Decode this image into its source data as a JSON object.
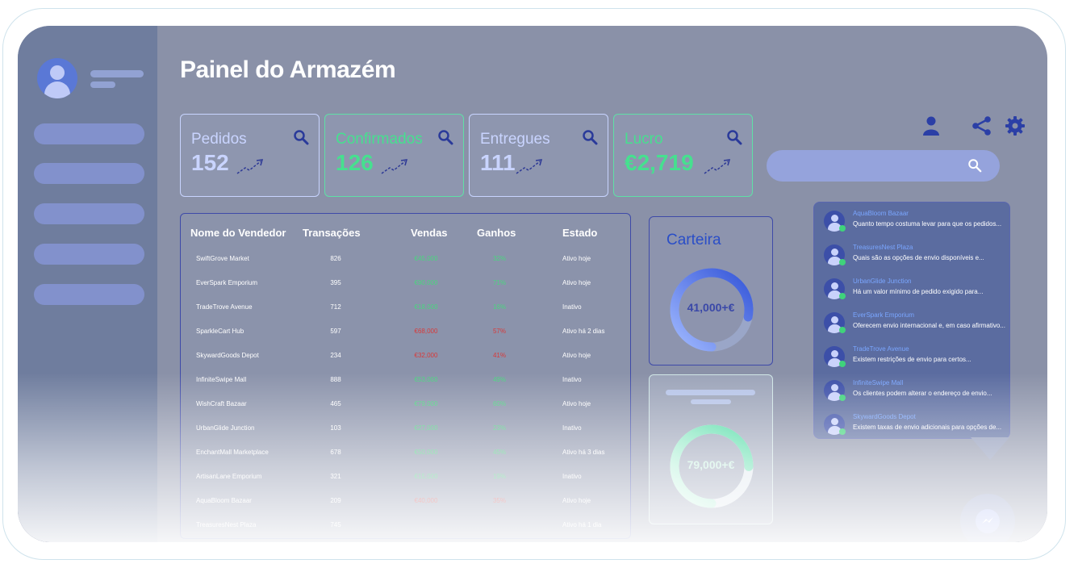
{
  "page": {
    "title": "Painel do Armazém"
  },
  "stats": [
    {
      "label": "Pedidos",
      "value": "152"
    },
    {
      "label": "Confirmados",
      "value": "126"
    },
    {
      "label": "Entregues",
      "value": "111"
    },
    {
      "label": "Lucro",
      "value": "€2,719"
    }
  ],
  "table": {
    "headers": [
      "Nome do Vendedor",
      "Transações",
      "Vendas",
      "Ganhos",
      "Estado"
    ],
    "rows": [
      {
        "name": "SwiftGrove Market",
        "transactions": "826",
        "sales": "€45,000",
        "gains": "32%",
        "status": "Ativo hoje",
        "trend": "pos"
      },
      {
        "name": "EverSpark Emporium",
        "transactions": "395",
        "sales": "€90,000",
        "gains": "71%",
        "status": "Ativo hoje",
        "trend": "pos"
      },
      {
        "name": "TradeTrove Avenue",
        "transactions": "712",
        "sales": "€18,000",
        "gains": "16%",
        "status": "Inativo",
        "trend": "pos"
      },
      {
        "name": "SparkleCart Hub",
        "transactions": "597",
        "sales": "€68,000",
        "gains": "57%",
        "status": "Ativo há 2 dias",
        "trend": "neg"
      },
      {
        "name": "SkywardGoods Depot",
        "transactions": "234",
        "sales": "€32,000",
        "gains": "41%",
        "status": "Ativo hoje",
        "trend": "neg"
      },
      {
        "name": "InfiniteSwipe Mall",
        "transactions": "888",
        "sales": "€53,000",
        "gains": "49%",
        "status": "Inativo",
        "trend": "pos"
      },
      {
        "name": "WishCraft Bazaar",
        "transactions": "465",
        "sales": "€79,000",
        "gains": "60%",
        "status": "Ativo hoje",
        "trend": "pos"
      },
      {
        "name": "UrbanGlide Junction",
        "transactions": "103",
        "sales": "€27,000",
        "gains": "23%",
        "status": "Inativo",
        "trend": "pos"
      },
      {
        "name": "EnchantMall Marketplace",
        "transactions": "678",
        "sales": "€50,000",
        "gains": "45%",
        "status": "Ativo há 3 dias",
        "trend": "pos"
      },
      {
        "name": "ArtisanLane Emporium",
        "transactions": "321",
        "sales": "€15,000",
        "gains": "19%",
        "status": "Inativo",
        "trend": "pos"
      },
      {
        "name": "AquaBloom Bazaar",
        "transactions": "209",
        "sales": "€40,000",
        "gains": "35%",
        "status": "Ativo hoje",
        "trend": "neg"
      },
      {
        "name": "TreasuresNest Plaza",
        "transactions": "745",
        "sales": "",
        "gains": "",
        "status": "Ativo há 1 dia",
        "trend": "pos"
      }
    ]
  },
  "wallet": {
    "title": "Carteira",
    "value": "41,000+€",
    "progress": 0.78
  },
  "wallet2": {
    "value": "79,000+€",
    "progress": 0.75
  },
  "chats": [
    {
      "name": "AquaBloom Bazaar",
      "message": "Quanto tempo costuma levar para que os pedidos..."
    },
    {
      "name": "TreasuresNest Plaza",
      "message": "Quais são as opções de envio disponíveis e..."
    },
    {
      "name": "UrbanGlide Junction",
      "message": "Há um valor mínimo de pedido exigido para..."
    },
    {
      "name": "EverSpark Emporium",
      "message": "Oferecem envio internacional e, em caso afirmativo..."
    },
    {
      "name": "TradeTrove Avenue",
      "message": "Existem restrições de envio para certos..."
    },
    {
      "name": "InfiniteSwipe Mall",
      "message": "Os clientes podem alterar o endereço de envio..."
    },
    {
      "name": "SkywardGoods Depot",
      "message": "Existem taxas de envio adicionais para opções de..."
    }
  ],
  "colors": {
    "accent": "#2a4ec7",
    "positive": "#46e08f",
    "negative": "#d83a3a",
    "panel": "#8a91a8",
    "sidebar": "#6f7d9e"
  },
  "icons": [
    "user-icon",
    "share-icon",
    "gear-icon",
    "search-icon",
    "messenger-icon"
  ]
}
